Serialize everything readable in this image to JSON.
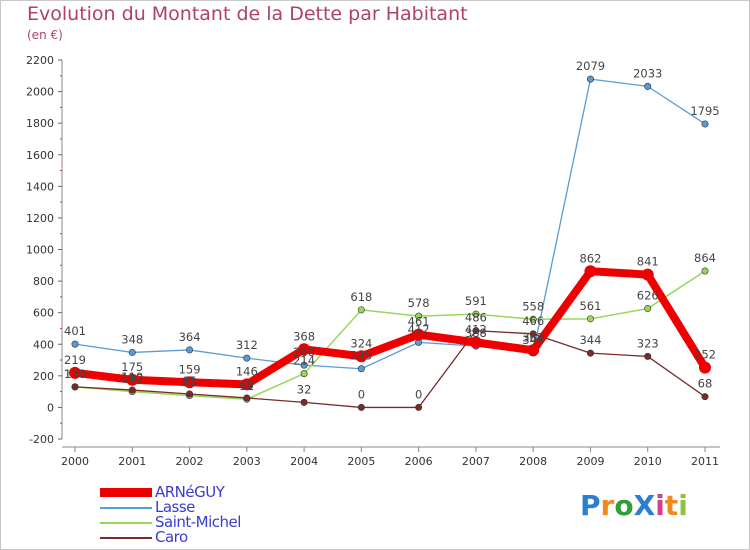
{
  "header": {
    "title": "Evolution du Montant de la Dette par Habitant",
    "subtitle": "(en €)"
  },
  "logo": {
    "text": "ProXiti",
    "letters": [
      {
        "ch": "P",
        "color": "#2c7fd0"
      },
      {
        "ch": "r",
        "color": "#f08a1c"
      },
      {
        "ch": "o",
        "color": "#2c9e3c"
      },
      {
        "ch": "X",
        "color": "#2c7fd0"
      },
      {
        "ch": "i",
        "color": "#d83c8c"
      },
      {
        "ch": "t",
        "color": "#f08a1c"
      },
      {
        "ch": "i",
        "color": "#8ac43c"
      }
    ]
  },
  "chart_data": {
    "type": "line",
    "title": "Evolution du Montant de la Dette par Habitant",
    "subtitle": "(en €)",
    "x": [
      "2000",
      "2001",
      "2002",
      "2003",
      "2004",
      "2005",
      "2006",
      "2007",
      "2008",
      "2009",
      "2010",
      "2011"
    ],
    "ylim": [
      -200,
      2200
    ],
    "yticks": [
      -200,
      0,
      200,
      400,
      600,
      800,
      1000,
      1200,
      1400,
      1600,
      1800,
      2000,
      2200
    ],
    "grid": false,
    "legend_position": "bottom-left",
    "series": [
      {
        "name": "ARNéGUY",
        "color": "#ee0000",
        "values": [
          219,
          175,
          159,
          146,
          368,
          324,
          461,
          412,
          362,
          862,
          841,
          252
        ]
      },
      {
        "name": "Lasse",
        "color": "#5a9bd4",
        "values": [
          401,
          348,
          364,
          312,
          268,
          245,
          412,
          388,
          345,
          2079,
          2033,
          1795
        ]
      },
      {
        "name": "Saint-Michel",
        "color": "#98d65c",
        "values": [
          130,
          100,
          75,
          52,
          214,
          618,
          578,
          591,
          558,
          561,
          626,
          864
        ]
      },
      {
        "name": "Caro",
        "color": "#7a2a2a",
        "values": [
          130,
          110,
          85,
          60,
          32,
          0,
          0,
          486,
          466,
          344,
          323,
          68
        ]
      }
    ],
    "data_labels": [
      {
        "series": 0,
        "labels": [
          "219",
          "175",
          "159",
          "146",
          "368",
          "324",
          "461",
          "412",
          "362",
          "862",
          "841",
          "252"
        ]
      },
      {
        "series": 1,
        "labels": [
          "401",
          "348",
          "364",
          "312",
          "268",
          "245",
          "412",
          "388",
          "345",
          "2079",
          "2033",
          "1795"
        ]
      },
      {
        "series": 2,
        "labels": [
          "130",
          "100",
          "75",
          "52",
          "214",
          "618",
          "578",
          "591",
          "558",
          "561",
          "626",
          "864"
        ]
      },
      {
        "series": 3,
        "labels": [
          "130",
          "110",
          "85",
          "60",
          "32",
          "0",
          "0",
          "486",
          "466",
          "344",
          "323",
          "68"
        ]
      }
    ]
  }
}
